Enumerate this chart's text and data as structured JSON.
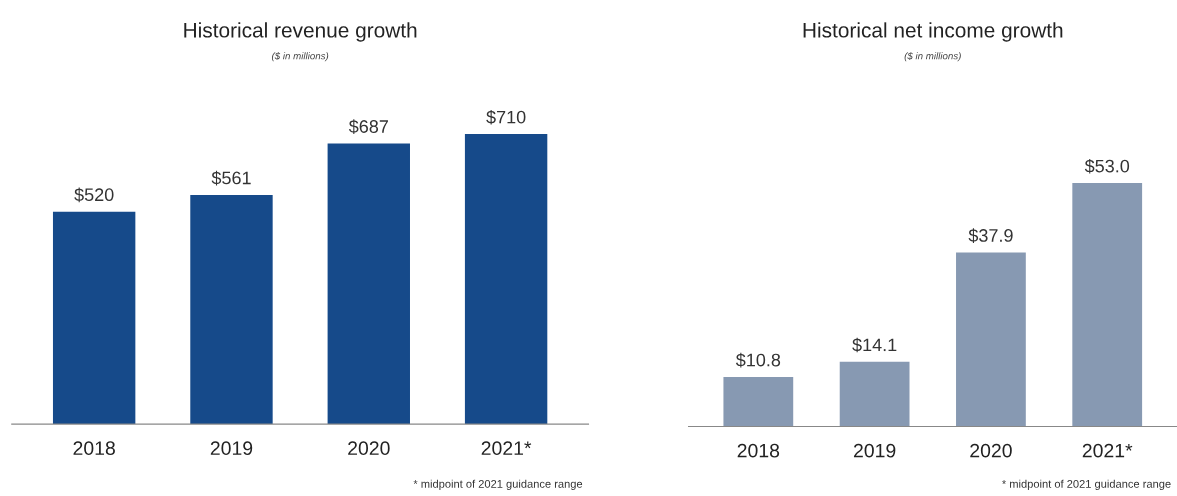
{
  "chart_data": [
    {
      "type": "bar",
      "title": "Historical revenue growth",
      "subtitle": "($ in millions)",
      "categories": [
        "2018",
        "2019",
        "2020",
        "2021*"
      ],
      "values": [
        520,
        561,
        687,
        710
      ],
      "value_labels": [
        "$520",
        "$561",
        "$687",
        "$710"
      ],
      "color": "#164a8a",
      "tick_labels": "x",
      "grid": false,
      "legend": false,
      "annotations": [
        "* midpoint of 2021 guidance range"
      ]
    },
    {
      "type": "bar",
      "title": "Historical net income growth",
      "subtitle": "($ in millions)",
      "categories": [
        "2018",
        "2019",
        "2020",
        "2021*"
      ],
      "values": [
        10.8,
        14.1,
        37.9,
        53.0
      ],
      "value_labels": [
        "$10.8",
        "$14.1",
        "$37.9",
        "$53.0"
      ],
      "color": "#8799b2",
      "tick_labels": "x",
      "grid": false,
      "legend": false,
      "annotations": [
        "* midpoint of 2021 guidance range"
      ]
    }
  ]
}
